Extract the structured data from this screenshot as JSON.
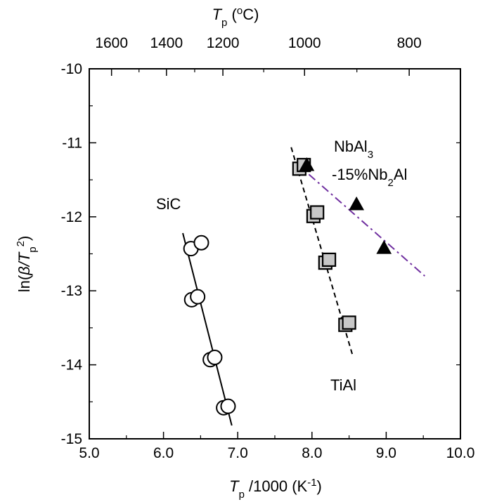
{
  "chart_data": {
    "type": "scatter",
    "xaxis": {
      "label": "T_p /1000 (K^-1)",
      "range": [
        5.0,
        10.0
      ],
      "ticks": [
        "5.0",
        "6.0",
        "7.0",
        "8.0",
        "9.0",
        "10.0"
      ]
    },
    "x2axis": {
      "label": "T_p (oC)",
      "ticks": [
        "1600",
        "1400",
        "1200",
        "1000",
        "800"
      ],
      "tick_positions_x": [
        5.3,
        6.04,
        6.8,
        7.9,
        9.31
      ]
    },
    "yaxis": {
      "label": "ln(β/T_p^2)",
      "range": [
        -15,
        -10
      ],
      "ticks": [
        "-10",
        "-11",
        "-12",
        "-13",
        "-14",
        "-15"
      ]
    },
    "grid": false,
    "annotations": [
      {
        "text": "SiC",
        "series": "SiC"
      },
      {
        "text": "TiAl",
        "series": "TiAl"
      },
      {
        "text": "NbAl3",
        "series": "NbAl3-15%Nb2Al"
      },
      {
        "text": "-15%Nb2Al",
        "series": "NbAl3-15%Nb2Al"
      }
    ],
    "series": [
      {
        "name": "SiC",
        "marker": "open-circle",
        "color": "#000000",
        "points": [
          [
            6.37,
            -12.43
          ],
          [
            6.51,
            -12.35
          ],
          [
            6.38,
            -13.12
          ],
          [
            6.46,
            -13.08
          ],
          [
            6.63,
            -13.93
          ],
          [
            6.69,
            -13.9
          ],
          [
            6.81,
            -14.58
          ],
          [
            6.87,
            -14.56
          ]
        ],
        "fit_line": {
          "style": "solid",
          "color": "#000000",
          "x": [
            6.26,
            6.92
          ],
          "y": [
            -12.22,
            -14.82
          ]
        }
      },
      {
        "name": "TiAl",
        "marker": "gray-square",
        "color": "#c8c8c8",
        "points": [
          [
            7.83,
            -11.35
          ],
          [
            7.89,
            -11.3
          ],
          [
            8.02,
            -11.99
          ],
          [
            8.07,
            -11.94
          ],
          [
            8.18,
            -12.62
          ],
          [
            8.23,
            -12.58
          ],
          [
            8.45,
            -13.46
          ],
          [
            8.5,
            -13.43
          ]
        ],
        "fit_line": {
          "style": "dashed",
          "color": "#000000",
          "x": [
            7.72,
            8.55
          ],
          "y": [
            -11.06,
            -13.88
          ]
        }
      },
      {
        "name": "NbAl3-15%Nb2Al",
        "marker": "filled-triangle",
        "color": "#000000",
        "points": [
          [
            7.93,
            -11.3
          ],
          [
            8.6,
            -11.83
          ],
          [
            8.97,
            -12.42
          ]
        ],
        "fit_line": {
          "style": "dash-dot",
          "color": "#7030a0",
          "x": [
            7.78,
            9.52
          ],
          "y": [
            -11.27,
            -12.8
          ]
        }
      }
    ]
  }
}
